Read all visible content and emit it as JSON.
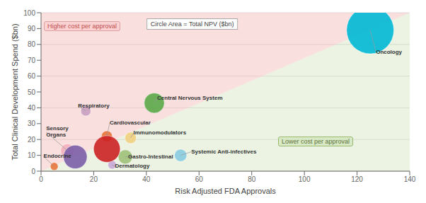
{
  "chart_data": {
    "type": "scatter",
    "xlabel": "Risk Adjusted FDA Approvals",
    "ylabel": "Total Clinical Development Spend ($bn)",
    "xlim": [
      0,
      140
    ],
    "ylim": [
      0,
      100
    ],
    "xticks": [
      0,
      20,
      40,
      60,
      80,
      100,
      120,
      140
    ],
    "yticks": [
      0,
      10,
      20,
      30,
      40,
      50,
      60,
      70,
      80,
      90,
      100
    ],
    "grid": true,
    "x": [
      5,
      10,
      17,
      25,
      34,
      32,
      27,
      43,
      53,
      125,
      13,
      25
    ],
    "values": [
      3,
      13,
      38,
      22,
      21,
      9,
      4,
      43,
      10,
      89,
      9,
      14
    ],
    "sizes": [
      60,
      180,
      100,
      120,
      130,
      200,
      70,
      400,
      150,
      2200,
      550,
      700
    ],
    "colors": [
      "#E8743B",
      "#f4b0bc",
      "#c8a0c0",
      "#E8743B",
      "#f0d080",
      "#a0c078",
      "#c8a8d8",
      "#5aaa48",
      "#88cce0",
      "#00b8d4",
      "#7B5EA7",
      "#CC2222"
    ],
    "labels": [
      "Endocrine",
      "Sensory\nOrgans",
      "Respiratory",
      "Cardiovascular",
      "Immunomodulators",
      "Gastro-Intestinal",
      "Dermatology",
      "Central Nervous System",
      "Systemic Anti-infectives",
      "Oncology",
      null,
      null
    ],
    "region_colors": {
      "above": "#f5b8b8",
      "below": "#c8ddb0"
    },
    "annotations": [
      {
        "text": "Higher cost per approval",
        "color": "#c05050"
      },
      {
        "text": "Lower cost per approval",
        "color": "#607040"
      },
      {
        "text": "Circle Area = Total NPV ($bn)"
      }
    ]
  }
}
